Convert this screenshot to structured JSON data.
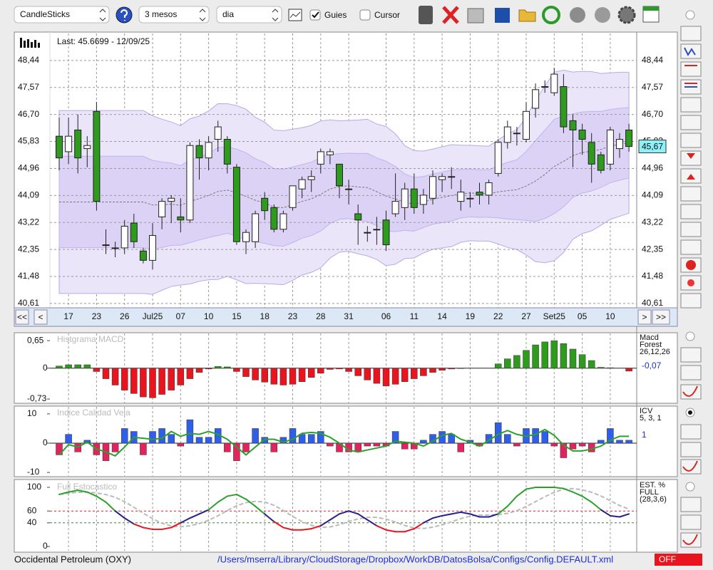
{
  "toolbar": {
    "chart_type": "CandleSticks",
    "period": "3 mesos",
    "interval": "dia",
    "guides": "Guies",
    "cursor": "Cursor"
  },
  "price": {
    "type": "candlestick",
    "last": "Last: 45.6699 - 12/09/25",
    "current": 45.67,
    "current_label": "45,67",
    "ylim": [
      40.47,
      49.31
    ],
    "yticks": [
      {
        "value": 48.44,
        "label": "48,44"
      },
      {
        "value": 47.57,
        "label": "47,57"
      },
      {
        "value": 46.7,
        "label": "46,70"
      },
      {
        "value": 45.83,
        "label": "45,83"
      },
      {
        "value": 44.96,
        "label": "44,96"
      },
      {
        "value": 44.09,
        "label": "44,09"
      },
      {
        "value": 43.22,
        "label": "43,22"
      },
      {
        "value": 42.35,
        "label": "42,35"
      },
      {
        "value": 41.48,
        "label": "41,48"
      },
      {
        "value": 40.61,
        "label": "40,61"
      }
    ],
    "categories": [
      null,
      "17",
      null,
      null,
      "23",
      null,
      null,
      "26",
      null,
      null,
      "Jul25",
      null,
      null,
      "07",
      null,
      null,
      "10",
      null,
      null,
      "15",
      null,
      null,
      "18",
      null,
      null,
      "23",
      null,
      null,
      "28",
      null,
      null,
      "31",
      null,
      null,
      null,
      "06",
      null,
      null,
      "11",
      null,
      null,
      "14",
      null,
      null,
      "19",
      null,
      null,
      "22",
      null,
      null,
      "27",
      null,
      null,
      "Set25",
      null,
      null,
      "05",
      null,
      null,
      "10",
      null,
      null
    ],
    "open": [
      46.0,
      45.5,
      46.2,
      45.6,
      46.8,
      42.5,
      42.4,
      42.4,
      43.2,
      42.3,
      42.0,
      43.4,
      43.9,
      43.4,
      43.3,
      45.7,
      45.3,
      45.9,
      45.9,
      45.0,
      42.6,
      42.6,
      44.0,
      43.7,
      43.0,
      43.7,
      44.3,
      44.6,
      45.1,
      45.4,
      45.1,
      44.3,
      43.5,
      42.9,
      43.0,
      43.3,
      43.5,
      43.7,
      44.3,
      43.8,
      44.0,
      44.6,
      44.7,
      43.9,
      44.0,
      44.2,
      44.1,
      44.8,
      45.8,
      46.1,
      45.9,
      46.9,
      47.6,
      47.4,
      47.6,
      46.5,
      46.2,
      45.8,
      45.4,
      45.1,
      45.6,
      46.2
    ],
    "high": [
      46.6,
      46.6,
      46.7,
      46.0,
      47.1,
      43.0,
      42.6,
      43.3,
      43.5,
      42.4,
      43.2,
      44.0,
      44.1,
      44.0,
      45.8,
      45.9,
      46.0,
      46.5,
      46.0,
      45.1,
      43.0,
      43.6,
      44.2,
      43.8,
      43.6,
      44.4,
      44.7,
      44.9,
      45.6,
      45.6,
      45.1,
      44.6,
      43.8,
      43.1,
      43.4,
      43.6,
      44.8,
      44.5,
      44.8,
      44.3,
      44.9,
      44.8,
      45.0,
      44.6,
      44.2,
      44.5,
      44.6,
      45.9,
      46.5,
      46.3,
      47.1,
      47.7,
      47.8,
      48.2,
      48.0,
      46.7,
      46.4,
      46.1,
      45.5,
      46.3,
      46.1,
      46.4
    ],
    "low": [
      44.9,
      45.1,
      44.8,
      45.0,
      43.6,
      42.2,
      42.1,
      42.2,
      42.4,
      41.9,
      41.7,
      43.0,
      43.2,
      42.9,
      43.2,
      44.6,
      44.9,
      45.5,
      44.8,
      42.5,
      42.2,
      42.4,
      43.3,
      42.9,
      42.9,
      43.6,
      44.0,
      44.2,
      44.8,
      45.1,
      44.0,
      43.8,
      42.5,
      42.6,
      42.5,
      42.3,
      43.4,
      43.3,
      43.5,
      43.5,
      43.8,
      44.2,
      44.3,
      43.6,
      43.7,
      43.8,
      43.8,
      44.7,
      45.6,
      45.7,
      45.8,
      46.6,
      47.4,
      47.3,
      46.1,
      45.0,
      45.4,
      44.5,
      44.8,
      44.9,
      45.3,
      45.5
    ],
    "close": [
      45.3,
      46.0,
      45.3,
      45.7,
      43.9,
      42.5,
      42.4,
      43.1,
      42.6,
      42.0,
      42.8,
      43.9,
      44.0,
      43.3,
      45.7,
      45.3,
      45.8,
      46.3,
      45.1,
      42.6,
      42.9,
      43.5,
      43.6,
      43.0,
      43.5,
      44.4,
      44.6,
      44.7,
      45.5,
      45.5,
      44.4,
      44.3,
      43.3,
      42.9,
      43.0,
      42.5,
      43.9,
      44.3,
      43.7,
      44.1,
      44.7,
      44.7,
      44.7,
      44.2,
      44.0,
      44.1,
      44.5,
      45.8,
      46.3,
      46.1,
      46.8,
      47.5,
      47.6,
      48.0,
      46.3,
      46.2,
      45.9,
      45.1,
      44.9,
      46.2,
      45.9,
      45.67
    ],
    "up_color": "#ffffff",
    "down_color": "#2e9a1e"
  },
  "nav": [
    "<<",
    "<",
    ">",
    ">>"
  ],
  "macd": {
    "title": "Histgrama MACD",
    "legend": [
      "Macd",
      "Forest",
      "26,12,26"
    ],
    "value_label": "-0,07",
    "ylim": [
      -0.83,
      0.82
    ],
    "yticks": [
      {
        "value": 0.65,
        "label": "0,65"
      },
      0,
      {
        "value": -0.73,
        "label": "-0,73"
      }
    ],
    "values": [
      0.05,
      0.08,
      0.08,
      0.08,
      -0.08,
      -0.25,
      -0.4,
      -0.52,
      -0.6,
      -0.68,
      -0.7,
      -0.62,
      -0.52,
      -0.4,
      -0.25,
      -0.1,
      -0.02,
      0.04,
      0.03,
      -0.08,
      -0.2,
      -0.28,
      -0.33,
      -0.38,
      -0.4,
      -0.38,
      -0.32,
      -0.22,
      -0.12,
      -0.03,
      -0.02,
      -0.08,
      -0.18,
      -0.28,
      -0.36,
      -0.42,
      -0.38,
      -0.32,
      -0.25,
      -0.18,
      -0.1,
      -0.05,
      -0.02,
      -0.01,
      0.0,
      0.0,
      0.0,
      0.1,
      0.22,
      0.3,
      0.42,
      0.55,
      0.62,
      0.65,
      0.58,
      0.45,
      0.32,
      0.18,
      0.02,
      0.01,
      0.0,
      -0.07
    ],
    "up_color": "#2e9a1e",
    "down_color": "#e8141e"
  },
  "icv": {
    "title": "Indice Calidad Vela",
    "legend": [
      "ICV",
      "5, 3, 1"
    ],
    "value_label": "1",
    "ylim": [
      -11.2,
      12.4
    ],
    "yticks": [
      10,
      0,
      -10
    ],
    "values": [
      -4,
      3,
      -3,
      1,
      -4,
      -6,
      -3,
      5,
      4,
      -4,
      4,
      5,
      3,
      -1,
      8,
      2,
      2,
      5,
      -3,
      -6,
      -3,
      5,
      2,
      -3,
      2,
      5,
      3,
      3,
      4,
      -1,
      -3,
      -3,
      -3,
      -1,
      -1,
      -1,
      4,
      -2,
      -2,
      1,
      3,
      4,
      3,
      -3,
      1,
      -1,
      3,
      7,
      3,
      -1,
      5,
      5,
      4,
      -1,
      -5,
      -2,
      -1,
      -3,
      1,
      5,
      1,
      1
    ],
    "up_color": "#2f5ee8",
    "down_color": "#e0245e",
    "line_color": "#2ca02c"
  },
  "stoch": {
    "title": "Full Estocastico",
    "legend": [
      "EST. %",
      "FULL",
      "(28,3,6)"
    ],
    "ylim": [
      -7.2,
      110.8
    ],
    "yticks": [
      100,
      60,
      40,
      0
    ],
    "levels": [
      60,
      40
    ],
    "values": [
      88,
      92,
      95,
      92,
      85,
      75,
      60,
      48,
      38,
      32,
      29,
      29,
      32,
      40,
      48,
      55,
      62,
      75,
      85,
      88,
      80,
      68,
      55,
      42,
      32,
      28,
      28,
      30,
      35,
      45,
      55,
      60,
      55,
      45,
      35,
      28,
      25,
      25,
      30,
      40,
      48,
      52,
      55,
      58,
      55,
      50,
      50,
      55,
      68,
      85,
      97,
      100,
      100,
      100,
      98,
      92,
      85,
      75,
      62,
      52,
      50,
      55
    ],
    "high_color": "#2ca02c",
    "mid_color": "#2a1f8a",
    "low_color": "#e8141e",
    "signal_color": "#bbbbbb"
  },
  "footer": {
    "company": "Occidental Petroleum (OXY)",
    "path": "/Users/mserra/Library/CloudStorage/Dropbox/WorkDB/DatosBolsa/Configs/Config.DEFAULT.xml",
    "status": "OFF"
  }
}
